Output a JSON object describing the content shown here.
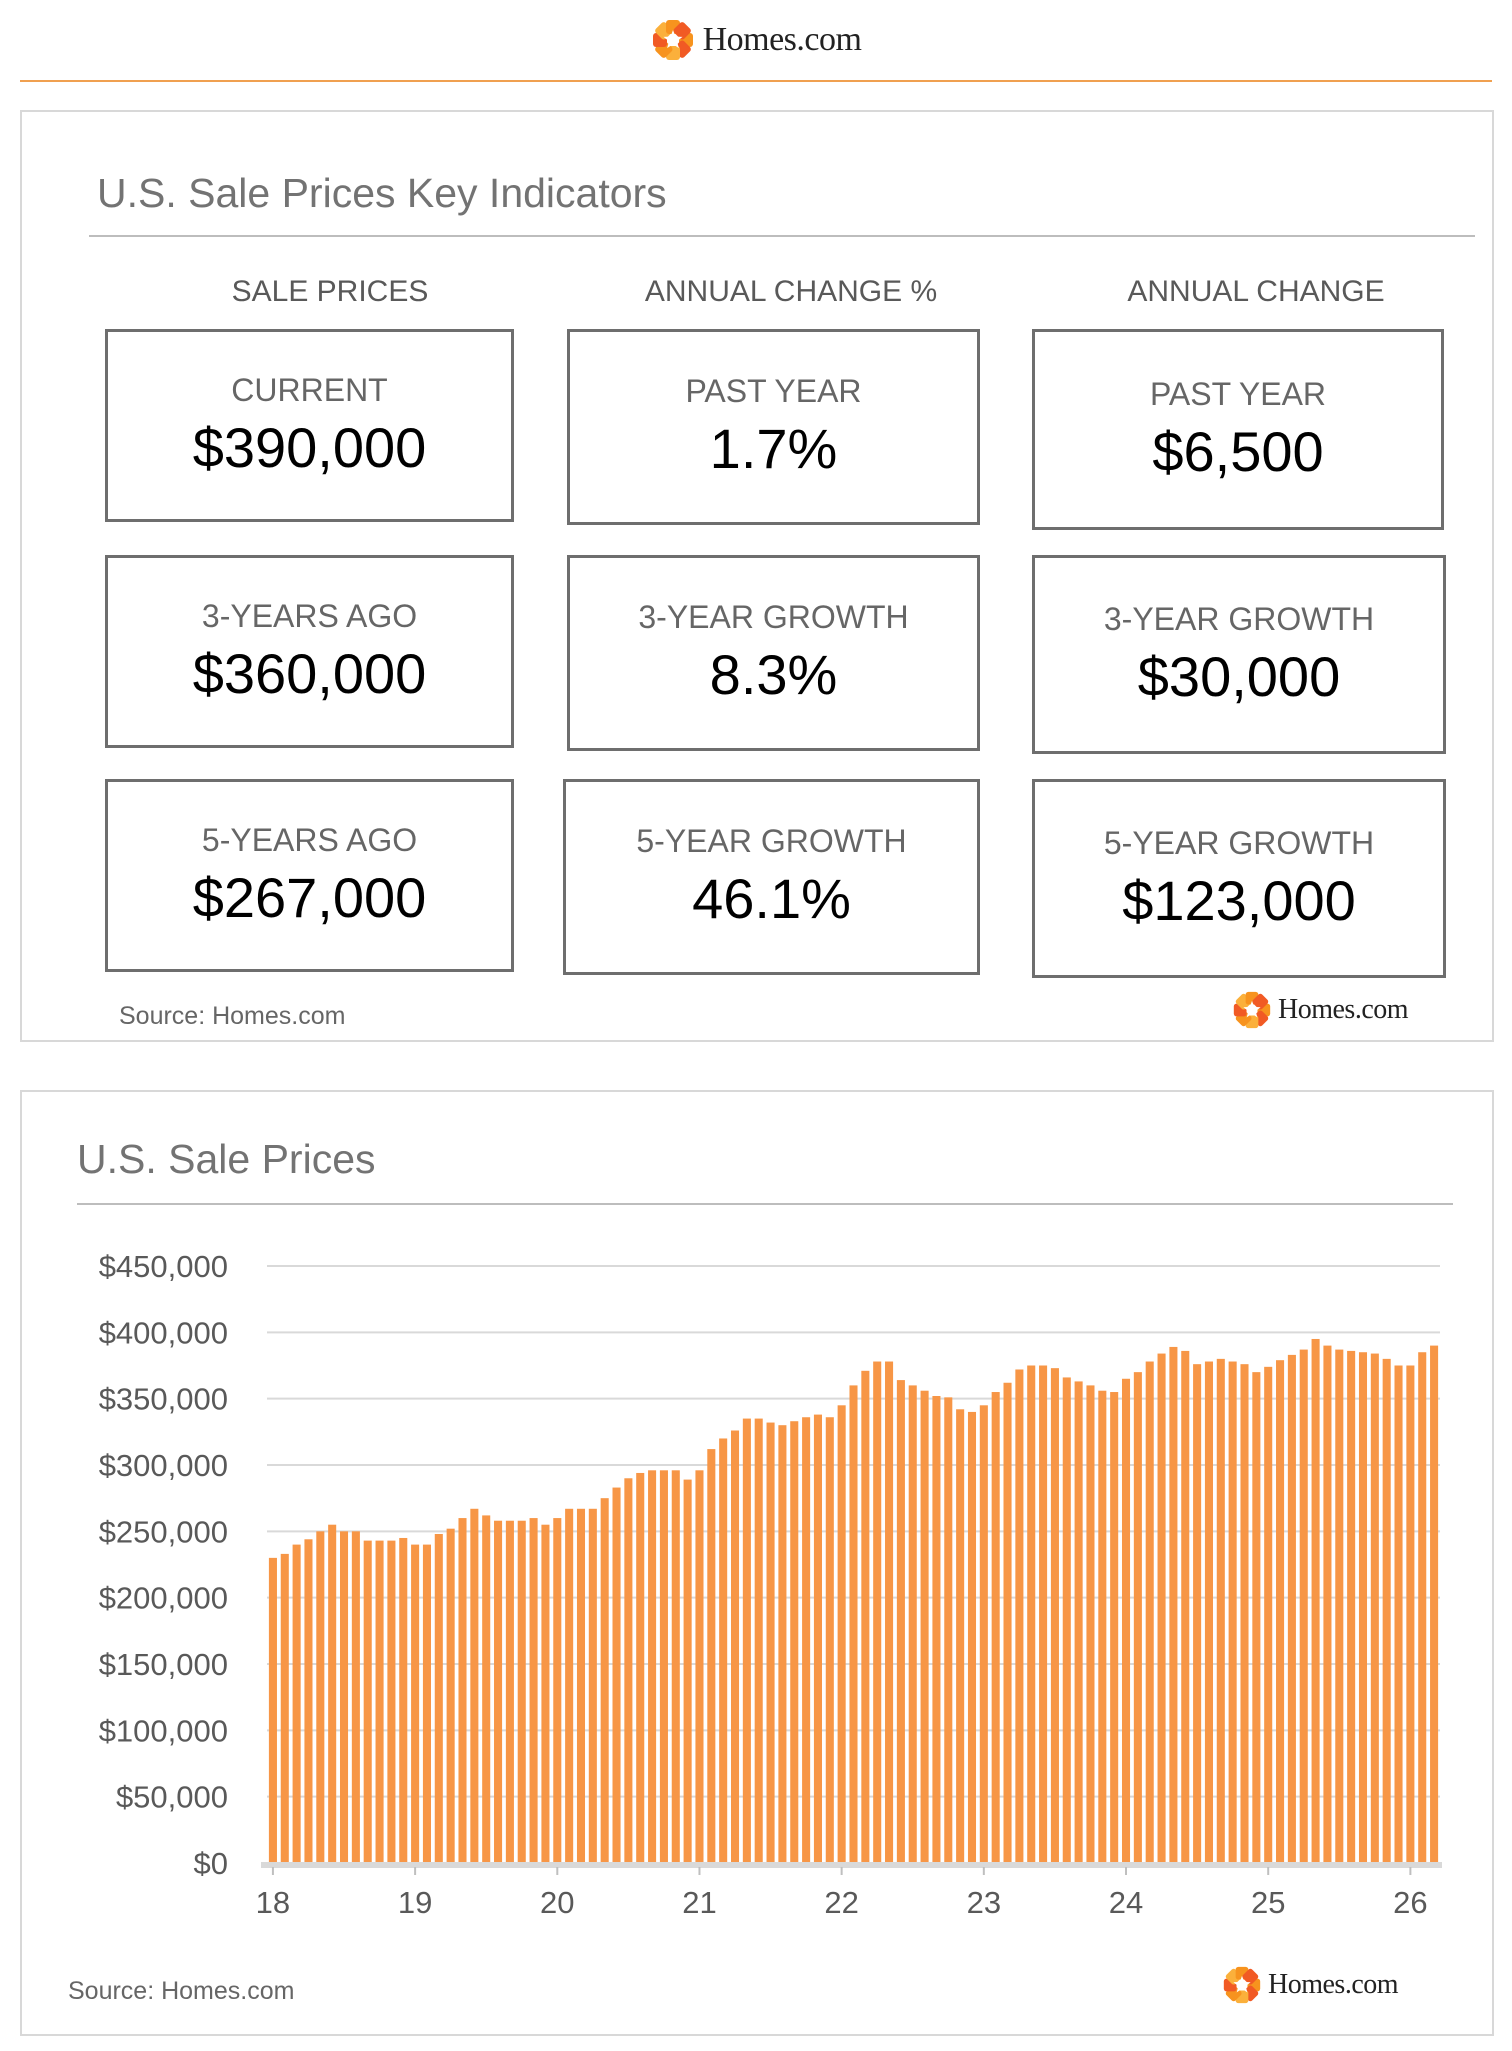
{
  "brand": {
    "name": "Homes.com",
    "logo_colors": [
      "#f7931e",
      "#f15a24",
      "#fbb03b"
    ]
  },
  "indicators": {
    "title": "U.S. Sale Prices Key Indicators",
    "columns": [
      {
        "heading": "SALE PRICES",
        "cards": [
          {
            "label": "CURRENT",
            "value": "$390,000"
          },
          {
            "label": "3-YEARS AGO",
            "value": "$360,000"
          },
          {
            "label": "5-YEARS AGO",
            "value": "$267,000"
          }
        ]
      },
      {
        "heading": "ANNUAL CHANGE %",
        "cards": [
          {
            "label": "PAST YEAR",
            "value": "1.7%"
          },
          {
            "label": "3-YEAR GROWTH",
            "value": "8.3%"
          },
          {
            "label": "5-YEAR GROWTH",
            "value": "46.1%"
          }
        ]
      },
      {
        "heading": "ANNUAL CHANGE",
        "cards": [
          {
            "label": "PAST YEAR",
            "value": "$6,500"
          },
          {
            "label": "3-YEAR GROWTH",
            "value": "$30,000"
          },
          {
            "label": "5-YEAR GROWTH",
            "value": "$123,000"
          }
        ]
      }
    ],
    "source": "Source: Homes.com"
  },
  "chart_data": {
    "type": "bar",
    "title": "U.S. Sale Prices",
    "xlabel": "",
    "ylabel": "",
    "ylim": [
      0,
      450000
    ],
    "yticks": [
      0,
      50000,
      100000,
      150000,
      200000,
      250000,
      300000,
      350000,
      400000,
      450000
    ],
    "ytick_labels": [
      "$0",
      "$50,000",
      "$100,000",
      "$150,000",
      "$200,000",
      "$250,000",
      "$300,000",
      "$350,000",
      "$400,000",
      "$450,000"
    ],
    "xtick_labels": [
      "18",
      "19",
      "20",
      "21",
      "22",
      "23",
      "24",
      "25",
      "26"
    ],
    "grid": true,
    "bar_color": "#f79646",
    "series": [
      {
        "values": [
          230000,
          233000,
          240000,
          244000,
          250000,
          255000,
          250000,
          250000,
          243000,
          243000,
          243000,
          245000,
          240000,
          240000,
          248000,
          252000,
          260000,
          267000,
          262000,
          258000,
          258000,
          258000,
          260000,
          255000,
          260000,
          267000,
          267000,
          267000,
          275000,
          283000,
          290000,
          294000,
          296000,
          296000,
          296000,
          289000,
          296000,
          312000,
          320000,
          326000,
          335000,
          335000,
          332000,
          330000,
          333000,
          336000,
          338000,
          336000,
          345000,
          360000,
          371000,
          378000,
          378000,
          364000,
          360000,
          356000,
          352000,
          351000,
          342000,
          340000,
          345000,
          355000,
          362000,
          372000,
          375000,
          375000,
          373000,
          366000,
          363000,
          360000,
          356000,
          355000,
          365000,
          370000,
          378000,
          384000,
          389000,
          386000,
          376000,
          378000,
          380000,
          378000,
          376000,
          370000,
          374000,
          379000,
          383000,
          387000,
          395000,
          390000,
          387000,
          386000,
          385000,
          384000,
          380000,
          375000,
          375000,
          385000,
          390000
        ]
      }
    ],
    "source": "Source: Homes.com"
  }
}
